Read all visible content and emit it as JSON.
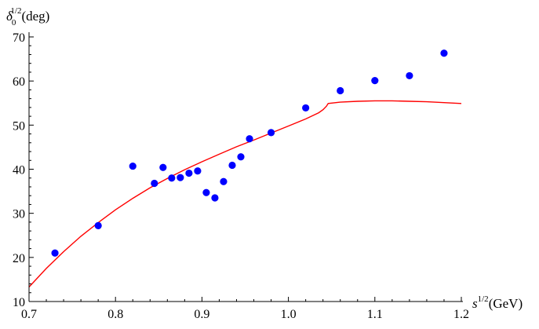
{
  "chart_data": {
    "type": "scatter",
    "title": "",
    "xlabel": {
      "base": "s",
      "sup": "1/2",
      "unit": "(GeV)"
    },
    "ylabel": {
      "base": "δ",
      "sub": "0",
      "sup": "1/2",
      "unit": "(deg)"
    },
    "xlim": [
      0.7,
      1.2
    ],
    "ylim": [
      10,
      70
    ],
    "x_ticks": [
      "0.7",
      "0.8",
      "0.9",
      "1.0",
      "1.1",
      "1.2"
    ],
    "y_ticks": [
      "10",
      "20",
      "30",
      "40",
      "50",
      "60",
      "70"
    ],
    "grid": false,
    "legend": "none",
    "series": [
      {
        "kind": "points",
        "color": "#0000ff",
        "x": [
          0.73,
          0.78,
          0.82,
          0.845,
          0.855,
          0.865,
          0.875,
          0.885,
          0.895,
          0.905,
          0.915,
          0.925,
          0.935,
          0.945,
          0.955,
          0.98,
          1.02,
          1.06,
          1.1,
          1.14,
          1.18
        ],
        "y": [
          21.0,
          27.2,
          40.7,
          36.8,
          40.4,
          38.0,
          38.1,
          39.1,
          39.6,
          34.7,
          33.5,
          37.2,
          40.9,
          42.8,
          46.9,
          48.3,
          53.9,
          57.8,
          60.1,
          61.2,
          66.3
        ]
      },
      {
        "kind": "line",
        "color": "#ff0000",
        "x": [
          0.7,
          0.72,
          0.74,
          0.76,
          0.78,
          0.8,
          0.82,
          0.84,
          0.86,
          0.88,
          0.9,
          0.92,
          0.94,
          0.96,
          0.98,
          1.0,
          1.02,
          1.035,
          1.04,
          1.044,
          1.046,
          1.06,
          1.08,
          1.1,
          1.12,
          1.14,
          1.16,
          1.18,
          1.2
        ],
        "y": [
          13.3,
          17.5,
          21.3,
          24.8,
          27.9,
          30.8,
          33.4,
          35.8,
          37.9,
          39.9,
          41.7,
          43.4,
          45.1,
          46.6,
          48.2,
          49.8,
          51.4,
          52.8,
          53.5,
          54.3,
          54.9,
          55.2,
          55.4,
          55.5,
          55.5,
          55.4,
          55.3,
          55.1,
          54.9
        ]
      }
    ]
  }
}
